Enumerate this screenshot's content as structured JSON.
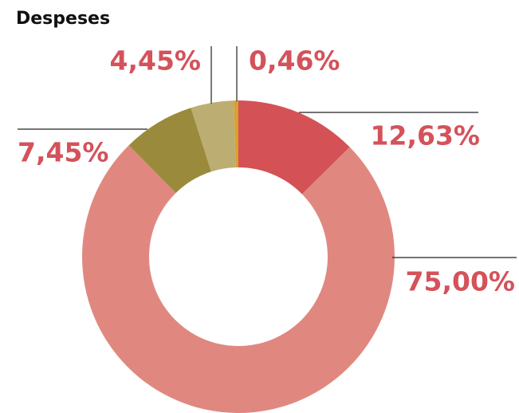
{
  "chart_data": {
    "type": "donut",
    "title": "Despeses",
    "categories": [
      null,
      null,
      null,
      null,
      null
    ],
    "values": [
      12.63,
      75.0,
      7.45,
      4.45,
      0.46
    ],
    "value_labels": [
      "12,63%",
      "75,00%",
      "7,45%",
      "4,45%",
      "0,46%"
    ],
    "colors": [
      "#d45155",
      "#e08880",
      "#9a8b3c",
      "#bcae72",
      "#d9a030"
    ]
  }
}
